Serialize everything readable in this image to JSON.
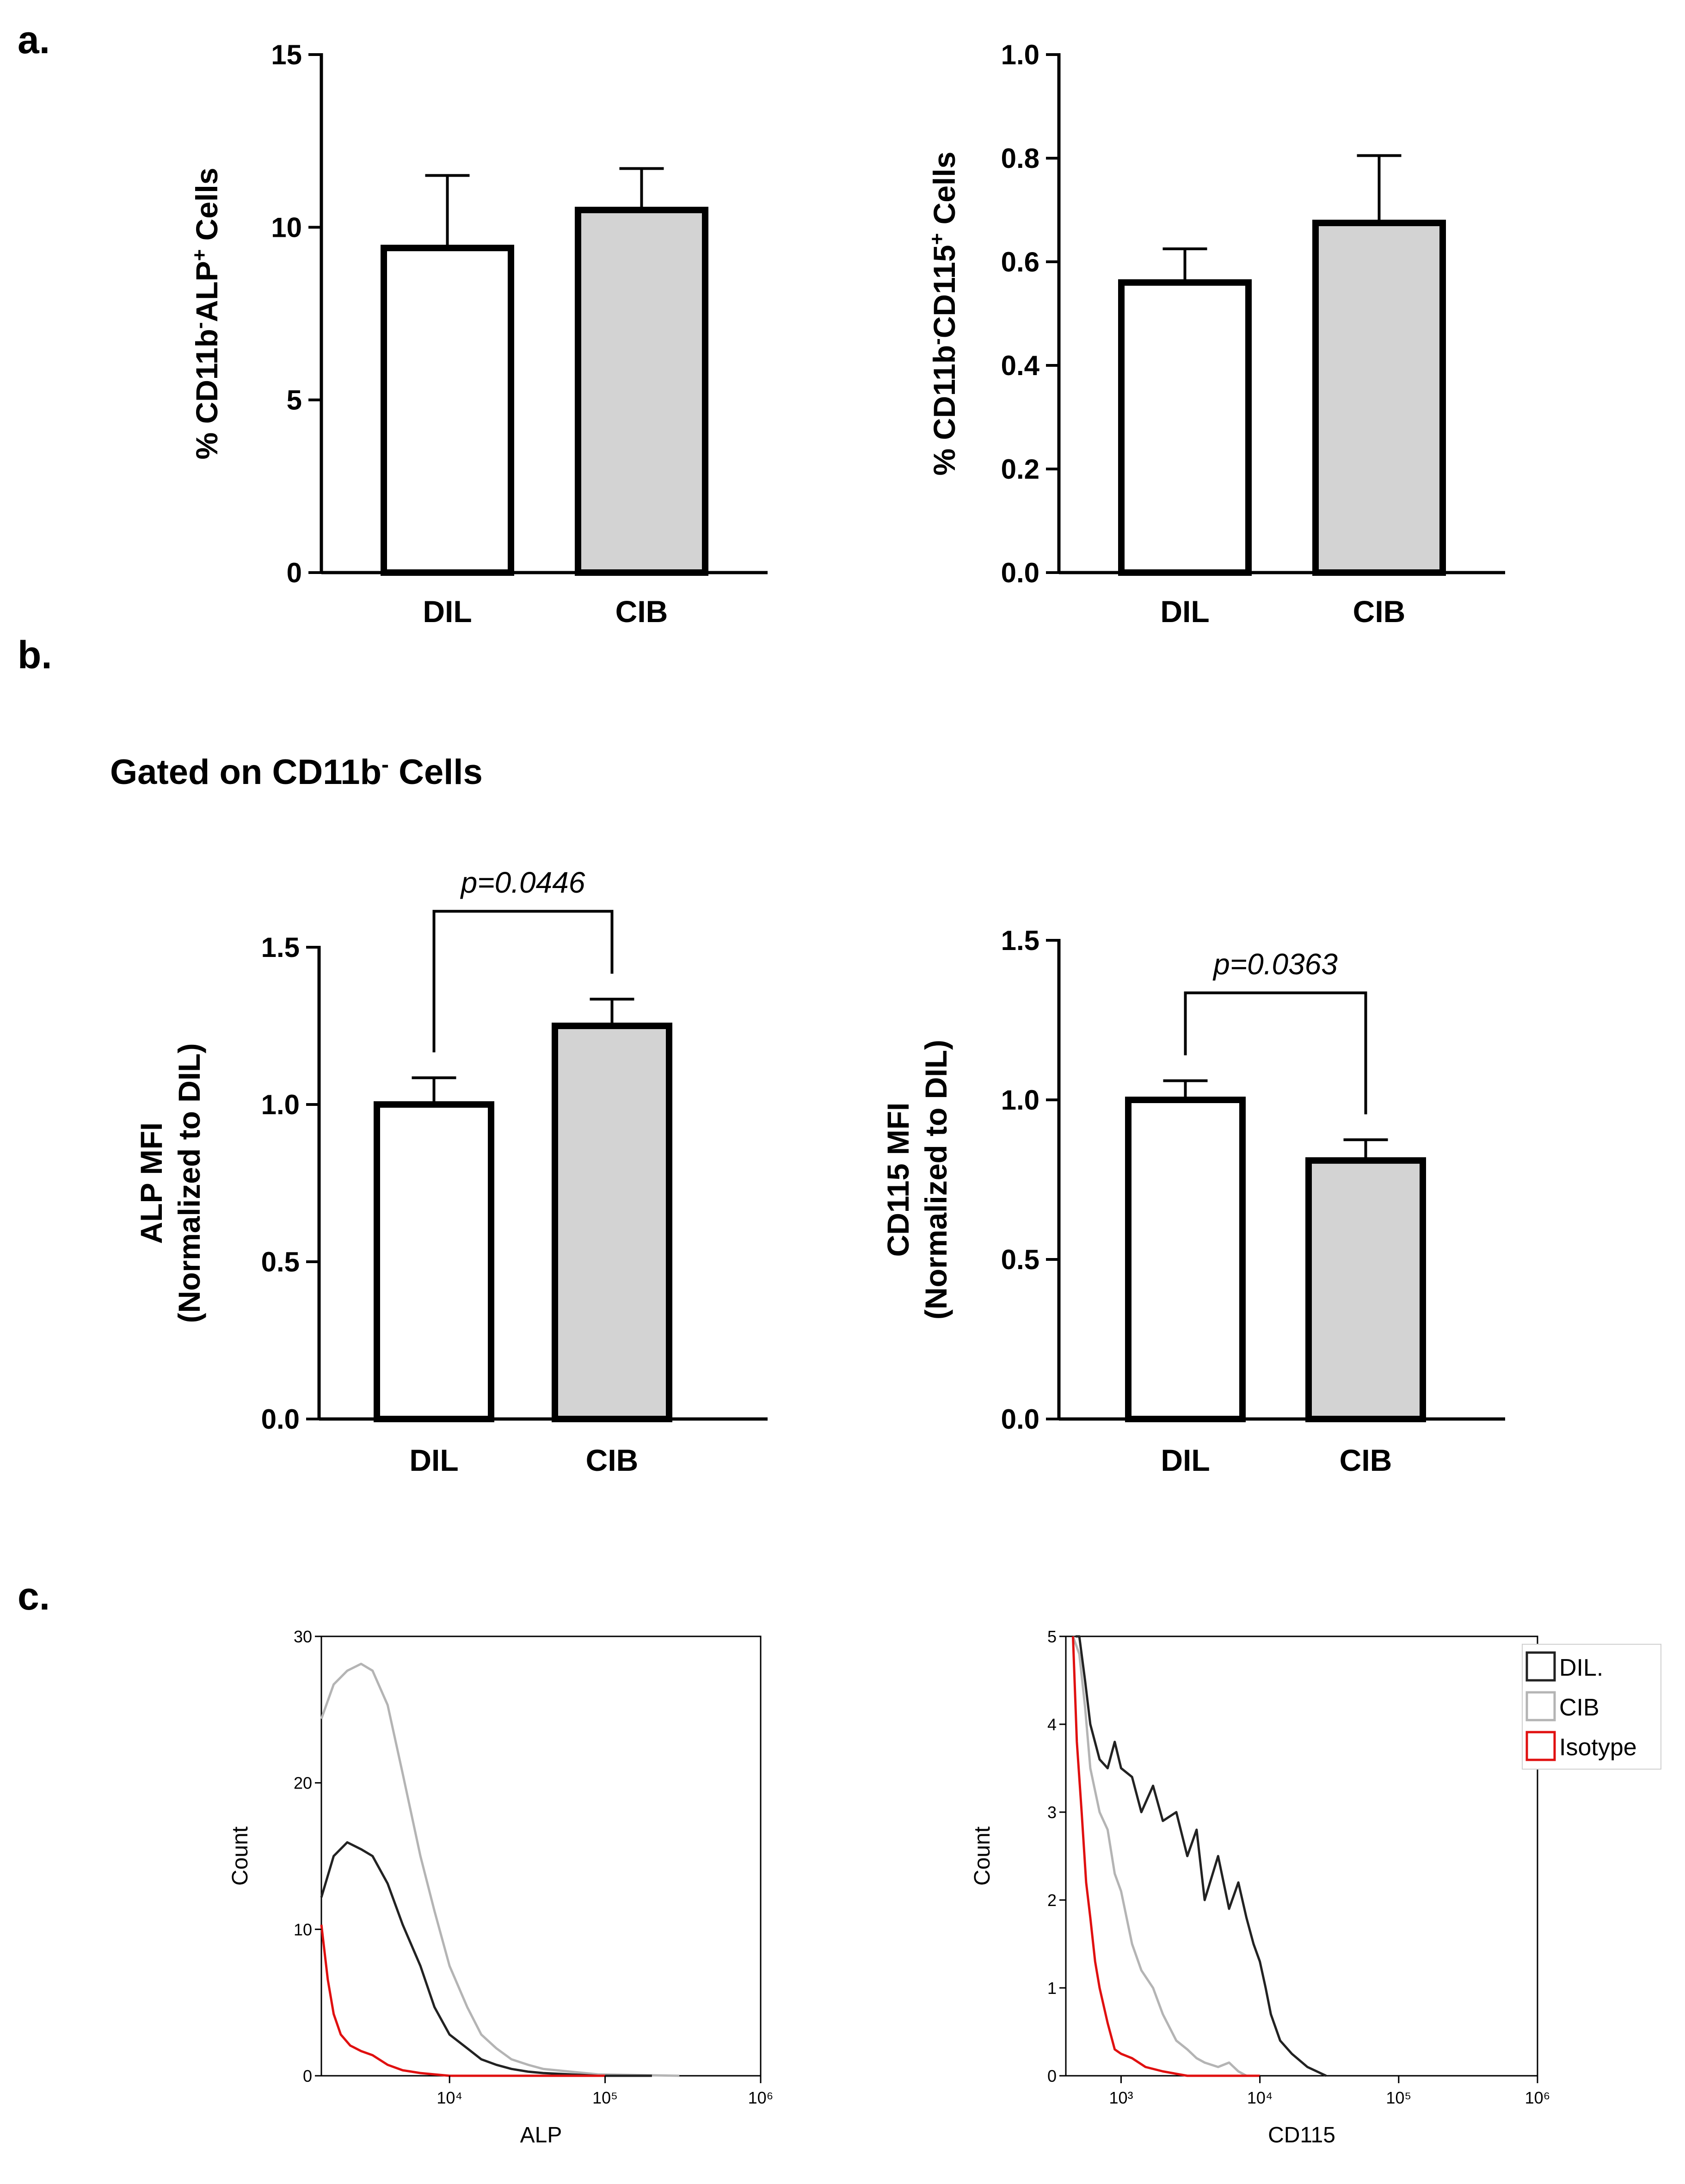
{
  "panels": {
    "a": "a.",
    "b": "b.",
    "c": "c.",
    "b_subtitle_main": "Gated on CD11b",
    "b_subtitle_sup": "-",
    "b_subtitle_end": " Cells"
  },
  "colors": {
    "dil_fill": "#ffffff",
    "cib_fill": "#d3d3d3",
    "dil_line": "#222222",
    "cib_line": "#b4b4b4",
    "isotype_line": "#e01010"
  },
  "chart_data": [
    {
      "id": "a1",
      "type": "bar",
      "categories": [
        "DIL",
        "CIB"
      ],
      "values": [
        9.4,
        10.5
      ],
      "errors": [
        2.1,
        1.2
      ],
      "ylabel": {
        "p1": "% CD11b",
        "s1": "-",
        "p2": "ALP",
        "s2": "+",
        "p3": " Cells"
      },
      "ylim": [
        0,
        15
      ],
      "yticks": [
        "0",
        "5",
        "10",
        "15"
      ]
    },
    {
      "id": "a2",
      "type": "bar",
      "categories": [
        "DIL",
        "CIB"
      ],
      "values": [
        0.56,
        0.675
      ],
      "errors": [
        0.065,
        0.13
      ],
      "ylabel": {
        "p1": "% CD11b",
        "s1": "-",
        "p2": "CD115",
        "s2": "+",
        "p3": " Cells"
      },
      "ylim": [
        0,
        1.0
      ],
      "yticks": [
        "0.0",
        "0.2",
        "0.4",
        "0.6",
        "0.8",
        "1.0"
      ]
    },
    {
      "id": "b1",
      "type": "bar",
      "categories": [
        "DIL",
        "CIB"
      ],
      "values": [
        1.0,
        1.25
      ],
      "errors": [
        0.085,
        0.085
      ],
      "ylabel": {
        "line1": "ALP MFI",
        "line2": "(Normalized to DIL)"
      },
      "ylim": [
        0,
        1.5
      ],
      "yticks": [
        "0.0",
        "0.5",
        "1.0",
        "1.5"
      ],
      "pvalue": "p=0.0446"
    },
    {
      "id": "b2",
      "type": "bar",
      "categories": [
        "DIL",
        "CIB"
      ],
      "values": [
        1.0,
        0.81
      ],
      "errors": [
        0.06,
        0.065
      ],
      "ylabel": {
        "line1": "CD115 MFI",
        "line2": "(Normalized to DIL)"
      },
      "ylim": [
        0,
        1.5
      ],
      "yticks": [
        "0.0",
        "0.5",
        "1.0",
        "1.5"
      ],
      "pvalue": "p=0.0363"
    },
    {
      "id": "c1",
      "type": "line",
      "xscale": "log",
      "xlim": [
        1500,
        1000000
      ],
      "xticks": [
        {
          "v": 10000,
          "label": "10⁴"
        },
        {
          "v": 100000,
          "label": "10⁵"
        },
        {
          "v": 1000000,
          "label": "10⁶"
        }
      ],
      "ylim": [
        0,
        32
      ],
      "yticks": [
        "0",
        "10",
        "20",
        "30"
      ],
      "xlabel": "ALP",
      "ylabel": "Count",
      "series": [
        {
          "key": "CIB",
          "x": [
            1500,
            1800,
            2200,
            2700,
            3200,
            4000,
            5000,
            6500,
            8000,
            10000,
            13000,
            16000,
            20000,
            25000,
            32000,
            40000,
            60000,
            90000,
            300000
          ],
          "y": [
            26,
            28.5,
            29.5,
            30,
            29.5,
            27,
            22,
            16,
            12,
            8,
            5,
            3,
            2,
            1.2,
            0.8,
            0.5,
            0.3,
            0.1,
            0
          ]
        },
        {
          "key": "DIL.",
          "x": [
            1500,
            1800,
            2200,
            2700,
            3200,
            4000,
            5000,
            6500,
            8000,
            10000,
            13000,
            16000,
            20000,
            25000,
            32000,
            40000,
            60000,
            90000,
            200000
          ],
          "y": [
            13,
            16,
            17,
            16.5,
            16,
            14,
            11,
            8,
            5,
            3,
            2,
            1.2,
            0.8,
            0.5,
            0.3,
            0.2,
            0.1,
            0,
            0
          ]
        },
        {
          "key": "Isotype",
          "x": [
            1500,
            1650,
            1800,
            2000,
            2300,
            2700,
            3200,
            4000,
            5000,
            6500,
            8000,
            10000,
            20000,
            50000,
            100000
          ],
          "y": [
            11,
            7,
            4.5,
            3,
            2.2,
            1.8,
            1.5,
            0.8,
            0.4,
            0.2,
            0.1,
            0,
            0,
            0,
            0
          ]
        }
      ]
    },
    {
      "id": "c2",
      "type": "line",
      "xscale": "log",
      "xlim": [
        400,
        1000000
      ],
      "xticks": [
        {
          "v": 1000,
          "label": "10³"
        },
        {
          "v": 10000,
          "label": "10⁴"
        },
        {
          "v": 100000,
          "label": "10⁵"
        },
        {
          "v": 1000000,
          "label": "10⁶"
        }
      ],
      "ylim": [
        0,
        5
      ],
      "yticks": [
        "0",
        "1",
        "2",
        "3",
        "4",
        "5"
      ],
      "xlabel": "CD115",
      "ylabel": "Count",
      "series": [
        {
          "key": "DIL.",
          "x": [
            470,
            500,
            550,
            600,
            700,
            800,
            900,
            1000,
            1200,
            1400,
            1700,
            2000,
            2500,
            3000,
            3500,
            4000,
            5000,
            6000,
            7000,
            8000,
            9000,
            10000,
            11000,
            12000,
            14000,
            17000,
            22000,
            30000
          ],
          "y": [
            5,
            5,
            4.5,
            4,
            3.6,
            3.5,
            3.8,
            3.5,
            3.4,
            3.0,
            3.3,
            2.9,
            3.0,
            2.5,
            2.8,
            2.0,
            2.5,
            1.9,
            2.2,
            1.8,
            1.5,
            1.3,
            1.0,
            0.7,
            0.4,
            0.25,
            0.1,
            0
          ]
        },
        {
          "key": "CIB",
          "x": [
            450,
            500,
            550,
            600,
            700,
            800,
            900,
            1000,
            1200,
            1400,
            1700,
            2000,
            2500,
            3000,
            3500,
            4000,
            5000,
            6000,
            7000,
            8000,
            10000
          ],
          "y": [
            5,
            4.8,
            4.2,
            3.5,
            3.0,
            2.8,
            2.3,
            2.1,
            1.5,
            1.2,
            1.0,
            0.7,
            0.4,
            0.3,
            0.2,
            0.15,
            0.1,
            0.15,
            0.05,
            0,
            0
          ]
        },
        {
          "key": "Isotype",
          "x": [
            450,
            480,
            520,
            560,
            600,
            650,
            700,
            800,
            900,
            1000,
            1200,
            1500,
            2000,
            3000,
            5000,
            10000
          ],
          "y": [
            5,
            3.8,
            3.0,
            2.2,
            1.8,
            1.3,
            1.0,
            0.6,
            0.3,
            0.25,
            0.2,
            0.1,
            0.05,
            0,
            0,
            0
          ]
        }
      ]
    }
  ],
  "legend": [
    {
      "label": "DIL.",
      "color": "#222222"
    },
    {
      "label": "CIB",
      "color": "#b4b4b4"
    },
    {
      "label": "Isotype",
      "color": "#e01010"
    }
  ]
}
